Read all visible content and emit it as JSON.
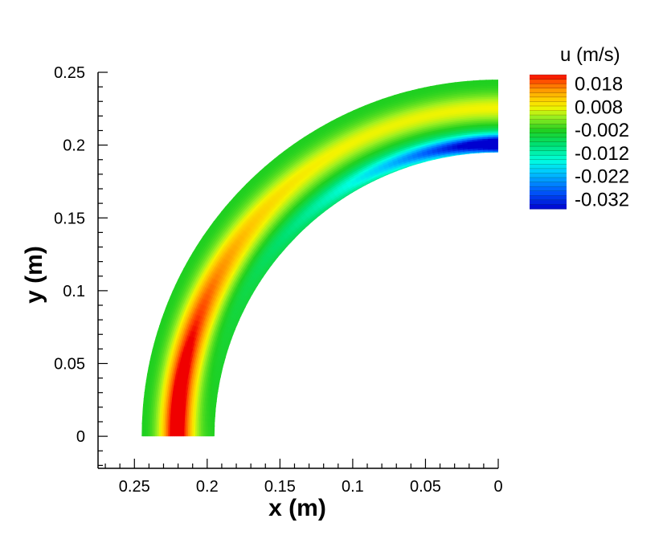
{
  "chart_data": {
    "type": "heatmap",
    "xlabel": "x  (m)",
    "ylabel": "y  (m)",
    "xlim": [
      0.275,
      0
    ],
    "ylim": [
      -0.022,
      0.25
    ],
    "x_ticks": [
      {
        "value": 0.25,
        "label": "0.25"
      },
      {
        "value": 0.2,
        "label": "0.2"
      },
      {
        "value": 0.15,
        "label": "0.15"
      },
      {
        "value": 0.1,
        "label": "0.1"
      },
      {
        "value": 0.05,
        "label": "0.05"
      },
      {
        "value": 0,
        "label": "0"
      }
    ],
    "y_ticks": [
      {
        "value": 0,
        "label": "0"
      },
      {
        "value": 0.05,
        "label": "0.05"
      },
      {
        "value": 0.1,
        "label": "0.1"
      },
      {
        "value": 0.15,
        "label": "0.15"
      },
      {
        "value": 0.2,
        "label": "0.2"
      },
      {
        "value": 0.25,
        "label": "0.25"
      }
    ],
    "domain": {
      "shape": "quarter-annulus",
      "inner_radius": 0.195,
      "outer_radius": 0.245,
      "angle_range_deg": [
        0,
        90
      ]
    },
    "colorbar": {
      "title": "u  (m/s)",
      "range": [
        -0.036,
        0.022
      ],
      "labels": [
        {
          "value": 0.018,
          "label": "0.018"
        },
        {
          "value": 0.008,
          "label": "0.008"
        },
        {
          "value": -0.002,
          "label": "-0.002"
        },
        {
          "value": -0.012,
          "label": "-0.012"
        },
        {
          "value": -0.022,
          "label": "-0.022"
        },
        {
          "value": -0.032,
          "label": "-0.032"
        }
      ],
      "stops": [
        {
          "value": -0.036,
          "color": "#0000d0"
        },
        {
          "value": -0.028,
          "color": "#0060ff"
        },
        {
          "value": -0.02,
          "color": "#00c8ff"
        },
        {
          "value": -0.015,
          "color": "#00ffe0"
        },
        {
          "value": -0.008,
          "color": "#00e070"
        },
        {
          "value": -0.002,
          "color": "#20d020"
        },
        {
          "value": 0.004,
          "color": "#a0f020"
        },
        {
          "value": 0.008,
          "color": "#f4f400"
        },
        {
          "value": 0.012,
          "color": "#ffc800"
        },
        {
          "value": 0.016,
          "color": "#ff9000"
        },
        {
          "value": 0.02,
          "color": "#ff4000"
        },
        {
          "value": 0.022,
          "color": "#f00000"
        }
      ]
    },
    "field_description": [
      {
        "region": "lower inner-to-mid band near x=0.22",
        "u_max": 0.022
      },
      {
        "region": "outer wall band",
        "u": -0.002
      },
      {
        "region": "inner wall near x=0 y=0.2",
        "u_min": -0.034
      }
    ]
  }
}
